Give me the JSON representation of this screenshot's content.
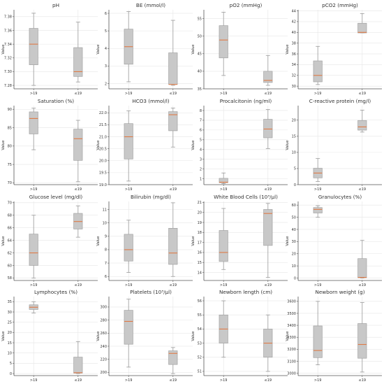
{
  "figure": {
    "colors": {
      "box_fill": "#c8c8c8",
      "box_edge": "#9a9a9a",
      "median": "#e07a45",
      "grid": "#e6e6e6",
      "axis": "#555555"
    },
    "ylabel": "Value",
    "groups": [
      ">19",
      "≤19"
    ]
  },
  "chart_data": [
    {
      "type": "box",
      "title": "pH",
      "ylabel": "Value",
      "ylim": [
        7.275,
        7.39
      ],
      "yticks": [
        "7.28",
        "7.30",
        "7.32",
        "7.34",
        "7.36",
        "7.38"
      ],
      "yticks_v": [
        7.28,
        7.3,
        7.32,
        7.34,
        7.36,
        7.38
      ],
      "grid": true,
      "categories": [
        ">19",
        "≤19"
      ],
      "boxes": [
        {
          "min": 7.28,
          "q1": 7.31,
          "median": 7.34,
          "q3": 7.363,
          "max": 7.385
        },
        {
          "min": 7.285,
          "q1": 7.293,
          "median": 7.3,
          "q3": 7.335,
          "max": 7.372
        }
      ]
    },
    {
      "type": "box",
      "title": "BE (mmol/l)",
      "ylabel": "Value",
      "ylim": [
        1.7,
        6.2
      ],
      "yticks": [
        "2",
        "3",
        "4",
        "5",
        "6"
      ],
      "yticks_v": [
        2,
        3,
        4,
        5,
        6
      ],
      "grid": true,
      "categories": [
        ">19",
        "≤19"
      ],
      "boxes": [
        {
          "min": 2.1,
          "q1": 3.1,
          "median": 4.1,
          "q3": 5.1,
          "max": 6.1
        },
        {
          "min": 1.9,
          "q1": 1.95,
          "median": 1.95,
          "q3": 3.75,
          "max": 5.6
        }
      ]
    },
    {
      "type": "box",
      "title": "pO2 (mmHg)",
      "ylabel": "Value",
      "ylim": [
        35,
        57.5
      ],
      "yticks": [
        "35",
        "40",
        "45",
        "50",
        "55"
      ],
      "yticks_v": [
        35,
        40,
        45,
        50,
        55
      ],
      "grid": true,
      "categories": [
        ">19",
        "≤19"
      ],
      "boxes": [
        {
          "min": 38.8,
          "q1": 43.8,
          "median": 48.9,
          "q3": 53.0,
          "max": 56.8
        },
        {
          "min": 36.0,
          "q1": 36.8,
          "median": 37.4,
          "q3": 40.0,
          "max": 44.5
        }
      ]
    },
    {
      "type": "box",
      "title": "pCO2 (mmHg)",
      "ylabel": "Value",
      "ylim": [
        29.5,
        44.2
      ],
      "yticks": [
        "30",
        "32",
        "34",
        "36",
        "38",
        "40",
        "42",
        "44"
      ],
      "yticks_v": [
        30,
        32,
        34,
        36,
        38,
        40,
        42,
        44
      ],
      "grid": true,
      "categories": [
        ">19",
        "≤19"
      ],
      "boxes": [
        {
          "min": 30.3,
          "q1": 30.8,
          "median": 32.0,
          "q3": 34.7,
          "max": 37.4
        },
        {
          "min": 39.9,
          "q1": 39.9,
          "median": 40.0,
          "q3": 41.7,
          "max": 43.5
        }
      ]
    },
    {
      "type": "box",
      "title": "Saturation (%)",
      "ylabel": "Value",
      "ylim": [
        69.5,
        91.0
      ],
      "yticks": [
        "70",
        "75",
        "80",
        "85",
        "90"
      ],
      "yticks_v": [
        70,
        75,
        80,
        85,
        90
      ],
      "grid": true,
      "categories": [
        ">19",
        "≤19"
      ],
      "boxes": [
        {
          "min": 79.0,
          "q1": 83.3,
          "median": 87.5,
          "q3": 89.3,
          "max": 90.3
        },
        {
          "min": 70.3,
          "q1": 76.1,
          "median": 82.0,
          "q3": 84.6,
          "max": 87.0
        }
      ]
    },
    {
      "type": "box",
      "title": "HCO3 (mmol/l)",
      "ylabel": "Value",
      "ylim": [
        19.0,
        22.3
      ],
      "yticks": [
        "19.0",
        "19.5",
        "20.0",
        "20.5",
        "21.0",
        "21.5",
        "22.0"
      ],
      "yticks_v": [
        19.0,
        19.5,
        20.0,
        20.5,
        21.0,
        21.5,
        22.0
      ],
      "grid": true,
      "categories": [
        ">19",
        "≤19"
      ],
      "boxes": [
        {
          "min": 19.15,
          "q1": 20.07,
          "median": 21.0,
          "q3": 21.55,
          "max": 22.08
        },
        {
          "min": 20.57,
          "q1": 21.25,
          "median": 21.92,
          "q3": 22.05,
          "max": 22.2
        }
      ]
    },
    {
      "type": "box",
      "title": "Procalcitonin (ng/ml)",
      "ylabel": "Value",
      "ylim": [
        0.4,
        8.5
      ],
      "yticks": [
        "1",
        "2",
        "3",
        "4",
        "5",
        "6",
        "7",
        "8"
      ],
      "yticks_v": [
        1,
        2,
        3,
        4,
        5,
        6,
        7,
        8
      ],
      "grid": true,
      "categories": [
        ">19",
        "≤19"
      ],
      "boxes": [
        {
          "min": 0.5,
          "q1": 0.6,
          "median": 0.65,
          "q3": 1.05,
          "max": 1.6
        },
        {
          "min": 4.1,
          "q1": 5.2,
          "median": 6.1,
          "q3": 7.1,
          "max": 8.1
        }
      ]
    },
    {
      "type": "box",
      "title": "C-reactive protein (mg/l)",
      "ylabel": "Value",
      "ylim": [
        0,
        24.5
      ],
      "yticks": [
        "0",
        "5",
        "10",
        "15",
        "20"
      ],
      "yticks_v": [
        0,
        5,
        10,
        15,
        20
      ],
      "grid": true,
      "categories": [
        ">19",
        "≤19"
      ],
      "boxes": [
        {
          "min": 1.0,
          "q1": 2.1,
          "median": 3.6,
          "q3": 5.1,
          "max": 8.1
        },
        {
          "min": 16.3,
          "q1": 16.9,
          "median": 17.9,
          "q3": 19.9,
          "max": 23.1
        }
      ]
    },
    {
      "type": "box",
      "title": "Glucose level (mg/dl)",
      "ylabel": "Value",
      "ylim": [
        57.6,
        70.2
      ],
      "yticks": [
        "58",
        "60",
        "62",
        "64",
        "66",
        "68",
        "70"
      ],
      "yticks_v": [
        58,
        60,
        62,
        64,
        66,
        68,
        70
      ],
      "grid": true,
      "categories": [
        ">19",
        "≤19"
      ],
      "boxes": [
        {
          "min": 58.0,
          "q1": 60.0,
          "median": 62.0,
          "q3": 65.0,
          "max": 68.0
        },
        {
          "min": 64.5,
          "q1": 65.8,
          "median": 67.0,
          "q3": 68.3,
          "max": 69.5
        }
      ]
    },
    {
      "type": "box",
      "title": "Bilirubin (mg/dl)",
      "ylabel": "Value",
      "ylim": [
        5.7,
        11.6
      ],
      "yticks": [
        "6",
        "7",
        "8",
        "9",
        "10",
        "11"
      ],
      "yticks_v": [
        6,
        7,
        8,
        9,
        10,
        11
      ],
      "grid": true,
      "categories": [
        ">19",
        "≤19"
      ],
      "boxes": [
        {
          "min": 6.3,
          "q1": 7.15,
          "median": 8.0,
          "q3": 9.15,
          "max": 10.2
        },
        {
          "min": 6.0,
          "q1": 6.9,
          "median": 7.75,
          "q3": 9.6,
          "max": 11.5
        }
      ]
    },
    {
      "type": "box",
      "title": "White Blood Cells (10³/µl)",
      "ylabel": "Value",
      "ylim": [
        13.2,
        21.1
      ],
      "yticks": [
        "14",
        "15",
        "16",
        "17",
        "18",
        "19",
        "20",
        "21"
      ],
      "yticks_v": [
        14,
        15,
        16,
        17,
        18,
        19,
        20,
        21
      ],
      "grid": true,
      "categories": [
        ">19",
        "≤19"
      ],
      "boxes": [
        {
          "min": 14.3,
          "q1": 15.1,
          "median": 16.0,
          "q3": 18.2,
          "max": 20.4
        },
        {
          "min": 13.5,
          "q1": 16.7,
          "median": 19.9,
          "q3": 20.3,
          "max": 20.9
        }
      ]
    },
    {
      "type": "box",
      "title": "Granulocytes (%)",
      "ylabel": "Value",
      "ylim": [
        -2,
        63
      ],
      "yticks": [
        "0",
        "10",
        "20",
        "30",
        "40",
        "50",
        "60"
      ],
      "yticks_v": [
        0,
        10,
        20,
        30,
        40,
        50,
        60
      ],
      "grid": true,
      "categories": [
        ">19",
        "≤19"
      ],
      "boxes": [
        {
          "min": 50.0,
          "q1": 53.5,
          "median": 56.5,
          "q3": 58.0,
          "max": 59.5
        },
        {
          "min": 0.0,
          "q1": 0.3,
          "median": 0.5,
          "q3": 16.0,
          "max": 31.0
        }
      ]
    },
    {
      "type": "box",
      "title": "Lymphocytes (%)",
      "ylabel": "Value",
      "ylim": [
        -1,
        37.5
      ],
      "yticks": [
        "0",
        "5",
        "10",
        "15",
        "20",
        "25",
        "30",
        "35"
      ],
      "yticks_v": [
        0,
        5,
        10,
        15,
        20,
        25,
        30,
        35
      ],
      "grid": true,
      "categories": [
        ">19",
        "≤19"
      ],
      "boxes": [
        {
          "min": 29.5,
          "q1": 31.2,
          "median": 32.3,
          "q3": 33.5,
          "max": 35.0
        },
        {
          "min": 0.0,
          "q1": 0.2,
          "median": 0.4,
          "q3": 8.0,
          "max": 15.6
        }
      ]
    },
    {
      "type": "box",
      "title": "Platelets (10³/µl)",
      "ylabel": "Value",
      "ylim": [
        195,
        316
      ],
      "yticks": [
        "200",
        "220",
        "240",
        "260",
        "280",
        "300"
      ],
      "yticks_v": [
        200,
        220,
        240,
        260,
        280,
        300
      ],
      "grid": true,
      "categories": [
        ">19",
        "≤19"
      ],
      "boxes": [
        {
          "min": 208,
          "q1": 243,
          "median": 278,
          "q3": 295,
          "max": 312
        },
        {
          "min": 198,
          "q1": 212,
          "median": 229,
          "q3": 233,
          "max": 238
        }
      ]
    },
    {
      "type": "box",
      "title": "Newborn length (cm)",
      "ylabel": "Value",
      "ylim": [
        50.7,
        56.3
      ],
      "yticks": [
        "51",
        "52",
        "53",
        "54",
        "55",
        "56"
      ],
      "yticks_v": [
        51,
        52,
        53,
        54,
        55,
        56
      ],
      "grid": true,
      "categories": [
        ">19",
        "≤19"
      ],
      "boxes": [
        {
          "min": 52.0,
          "q1": 53.0,
          "median": 54.0,
          "q3": 55.0,
          "max": 56.0
        },
        {
          "min": 51.0,
          "q1": 52.0,
          "median": 53.0,
          "q3": 54.0,
          "max": 55.0
        }
      ]
    },
    {
      "type": "box",
      "title": "Newborn weight (g)",
      "ylabel": "Value",
      "ylim": [
        2980,
        3640
      ],
      "yticks": [
        "3000",
        "3100",
        "3200",
        "3300",
        "3400",
        "3500",
        "3600"
      ],
      "yticks_v": [
        3000,
        3100,
        3200,
        3300,
        3400,
        3500,
        3600
      ],
      "grid": true,
      "categories": [
        ">19",
        "≤19"
      ],
      "boxes": [
        {
          "min": 3070,
          "q1": 3130,
          "median": 3190,
          "q3": 3395,
          "max": 3600
        },
        {
          "min": 3010,
          "q1": 3125,
          "median": 3240,
          "q3": 3415,
          "max": 3590
        }
      ]
    }
  ]
}
